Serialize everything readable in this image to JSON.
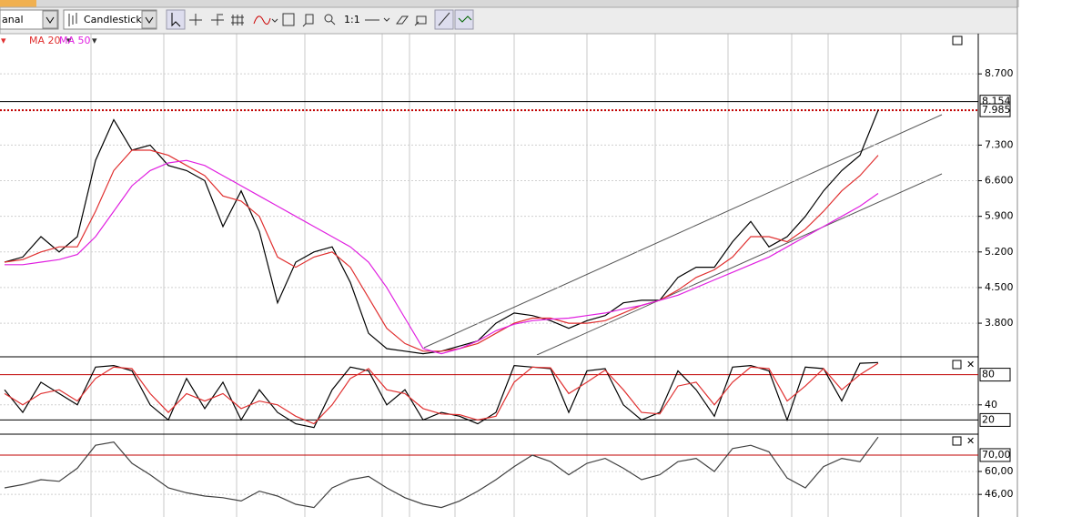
{
  "toolbar": {
    "period_select": "anal",
    "chart_type_select": "Candlestick",
    "zoom_label": "1:1"
  },
  "chart_data": [
    {
      "type": "line",
      "legend": [
        "MA 20",
        "MA 50"
      ],
      "categories": [
        null,
        null,
        null,
        null,
        null,
        null,
        null,
        null,
        null,
        null,
        null,
        null,
        null,
        null,
        null,
        null,
        null,
        null,
        null,
        null,
        null,
        null,
        null,
        null,
        null,
        null,
        null,
        null,
        null,
        null,
        null,
        null,
        null,
        null,
        null,
        null,
        null,
        null,
        null,
        null,
        null,
        null,
        null,
        null,
        null,
        null,
        null,
        null,
        null,
        null,
        null,
        null,
        null,
        null
      ],
      "series": [
        {
          "color": "#000000",
          "values": [
            5000,
            5100,
            5500,
            5200,
            5500,
            7000,
            7800,
            7200,
            7300,
            6900,
            6800,
            6600,
            5700,
            6400,
            5600,
            4200,
            5000,
            5200,
            5300,
            4600,
            3600,
            3300,
            3250,
            3200,
            3250,
            3350,
            3450,
            3800,
            4000,
            3950,
            3850,
            3700,
            3850,
            3950,
            4200,
            4250,
            4250,
            4700,
            4900,
            4900,
            5400,
            5800,
            5300,
            5500,
            5900,
            6400,
            6800,
            7100,
            7985,
            null,
            null,
            null,
            null,
            null
          ]
        },
        {
          "color": "#e03030",
          "values": [
            5000,
            5050,
            5200,
            5300,
            5300,
            6000,
            6800,
            7200,
            7200,
            7100,
            6900,
            6700,
            6300,
            6200,
            5900,
            5100,
            4900,
            5100,
            5200,
            4900,
            4300,
            3700,
            3400,
            3250,
            3250,
            3300,
            3400,
            3600,
            3800,
            3900,
            3900,
            3800,
            3800,
            3850,
            4000,
            4150,
            4250,
            4450,
            4700,
            4850,
            5100,
            5500,
            5500,
            5400,
            5650,
            6000,
            6400,
            6700,
            7100,
            null,
            null,
            null,
            null,
            null
          ]
        },
        {
          "color": "#e020e0",
          "values": [
            4950,
            4950,
            5000,
            5050,
            5150,
            5500,
            6000,
            6500,
            6800,
            6950,
            7000,
            6900,
            6700,
            6500,
            6300,
            6100,
            5900,
            5700,
            5500,
            5300,
            5000,
            4500,
            3900,
            3300,
            3200,
            3300,
            3450,
            3650,
            3780,
            3850,
            3880,
            3900,
            3950,
            4000,
            4080,
            4150,
            4250,
            4350,
            4500,
            4650,
            4800,
            4950,
            5100,
            5300,
            5500,
            5700,
            5900,
            6100,
            6350,
            null,
            null,
            null,
            null,
            null
          ]
        }
      ],
      "ylim": [
        3175,
        9490
      ],
      "yticks": [
        {
          "value": 3800,
          "label": "3.800"
        },
        {
          "value": 4500,
          "label": "4.500"
        },
        {
          "value": 5200,
          "label": "5.200"
        },
        {
          "value": 5900,
          "label": "5.900"
        },
        {
          "value": 6600,
          "label": "6.600"
        },
        {
          "value": 7300,
          "label": "7.300"
        },
        {
          "value": 8700,
          "label": "8.700"
        }
      ],
      "ref_lines": [
        {
          "value": 8154,
          "label": "8.154",
          "color": "#000000"
        },
        {
          "value": 7985,
          "label": "7.985",
          "color": "#c00000",
          "dashed": true
        }
      ],
      "grid": true
    },
    {
      "type": "line",
      "series": [
        {
          "color": "#000000",
          "values": [
            60,
            30,
            70,
            55,
            40,
            90,
            92,
            85,
            40,
            20,
            75,
            35,
            70,
            20,
            60,
            30,
            15,
            10,
            60,
            90,
            85,
            40,
            60,
            20,
            30,
            25,
            15,
            30,
            92,
            90,
            88,
            30,
            85,
            88,
            40,
            20,
            30,
            85,
            60,
            25,
            90,
            92,
            85,
            20,
            90,
            88,
            45,
            95,
            96,
            null,
            null,
            null,
            null,
            null
          ]
        },
        {
          "color": "#e03030",
          "values": [
            55,
            40,
            55,
            60,
            45,
            75,
            90,
            88,
            55,
            30,
            55,
            45,
            55,
            35,
            45,
            40,
            25,
            15,
            40,
            75,
            88,
            60,
            55,
            35,
            28,
            27,
            20,
            25,
            70,
            90,
            89,
            55,
            70,
            86,
            60,
            30,
            28,
            65,
            70,
            40,
            70,
            90,
            88,
            45,
            65,
            88,
            60,
            80,
            95,
            null,
            null,
            null,
            null,
            null
          ]
        }
      ],
      "ylim": [
        0,
        100
      ],
      "yticks": [
        40
      ],
      "ref_lines": [
        {
          "value": 80,
          "color": "#c00000"
        },
        {
          "value": 20,
          "color": "#000000"
        }
      ],
      "grid": true
    },
    {
      "type": "line",
      "series": [
        {
          "color": "#404040",
          "values": [
            50,
            52,
            55,
            54,
            62,
            76,
            78,
            65,
            58,
            50,
            47,
            45,
            44,
            42,
            48,
            45,
            40,
            38,
            50,
            55,
            57,
            50,
            44,
            40,
            38,
            42,
            48,
            55,
            63,
            70,
            66,
            58,
            65,
            68,
            62,
            55,
            58,
            66,
            68,
            60,
            74,
            76,
            72,
            56,
            50,
            63,
            68,
            66,
            81,
            null,
            null,
            null,
            null,
            null
          ]
        }
      ],
      "ylim": [
        32.2,
        82.2
      ],
      "yticks": [
        {
          "value": 60,
          "label": "60,00"
        },
        {
          "value": 46,
          "label": "46,00"
        }
      ],
      "ref_lines": [
        {
          "value": 70,
          "label": "70,00",
          "color": "#c00000"
        }
      ],
      "grid": true
    }
  ]
}
